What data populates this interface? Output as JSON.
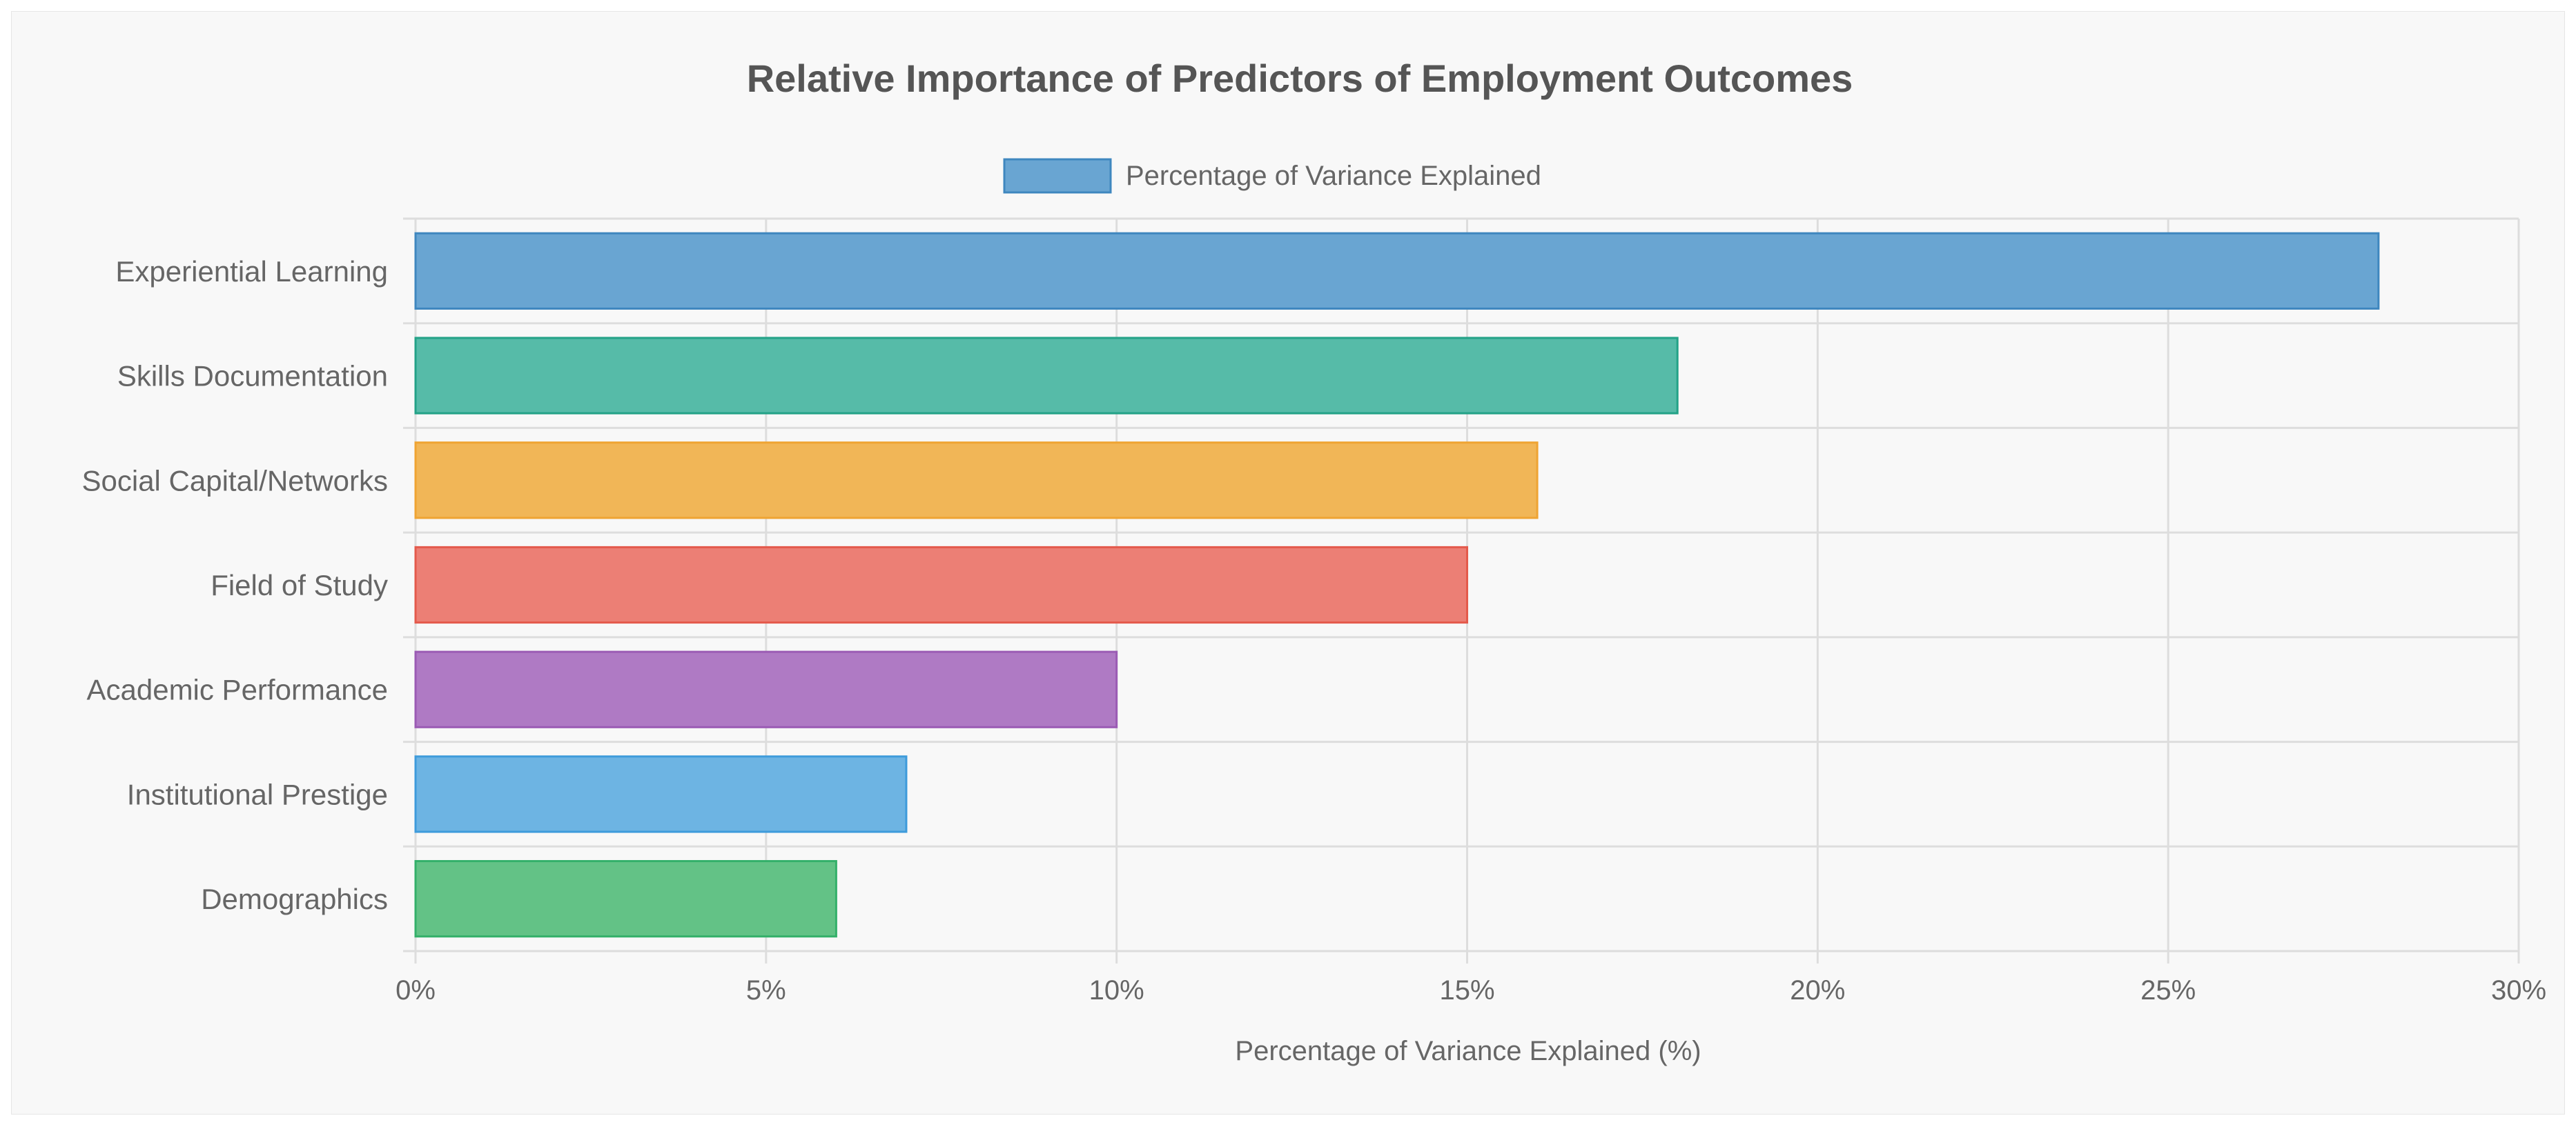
{
  "chart_data": {
    "type": "bar",
    "orientation": "horizontal",
    "title": "Relative Importance of Predictors of Employment Outcomes",
    "xlabel": "Percentage of Variance Explained (%)",
    "ylabel": "",
    "xlim": [
      0,
      30
    ],
    "x_ticks": [
      "0%",
      "5%",
      "10%",
      "15%",
      "20%",
      "25%",
      "30%"
    ],
    "x_tick_values": [
      0,
      5,
      10,
      15,
      20,
      25,
      30
    ],
    "grid": true,
    "legend": {
      "placement": "top-center",
      "entries": [
        "Percentage of Variance Explained"
      ]
    },
    "categories": [
      "Experiential Learning",
      "Skills Documentation",
      "Social Capital/Networks",
      "Field of Study",
      "Academic Performance",
      "Institutional Prestige",
      "Demographics"
    ],
    "series": [
      {
        "name": "Percentage of Variance Explained",
        "values": [
          28,
          18,
          16,
          15,
          10,
          7,
          6
        ]
      }
    ],
    "colors": {
      "fill": [
        "#69a5d2",
        "#56bba8",
        "#f1b657",
        "#ec7f75",
        "#af7ac4",
        "#6db4e3",
        "#63c286"
      ],
      "stroke": [
        "#3f87bf",
        "#23a287",
        "#efa433",
        "#e45a4c",
        "#9b5bb4",
        "#3e9bdb",
        "#34b06a"
      ]
    }
  }
}
